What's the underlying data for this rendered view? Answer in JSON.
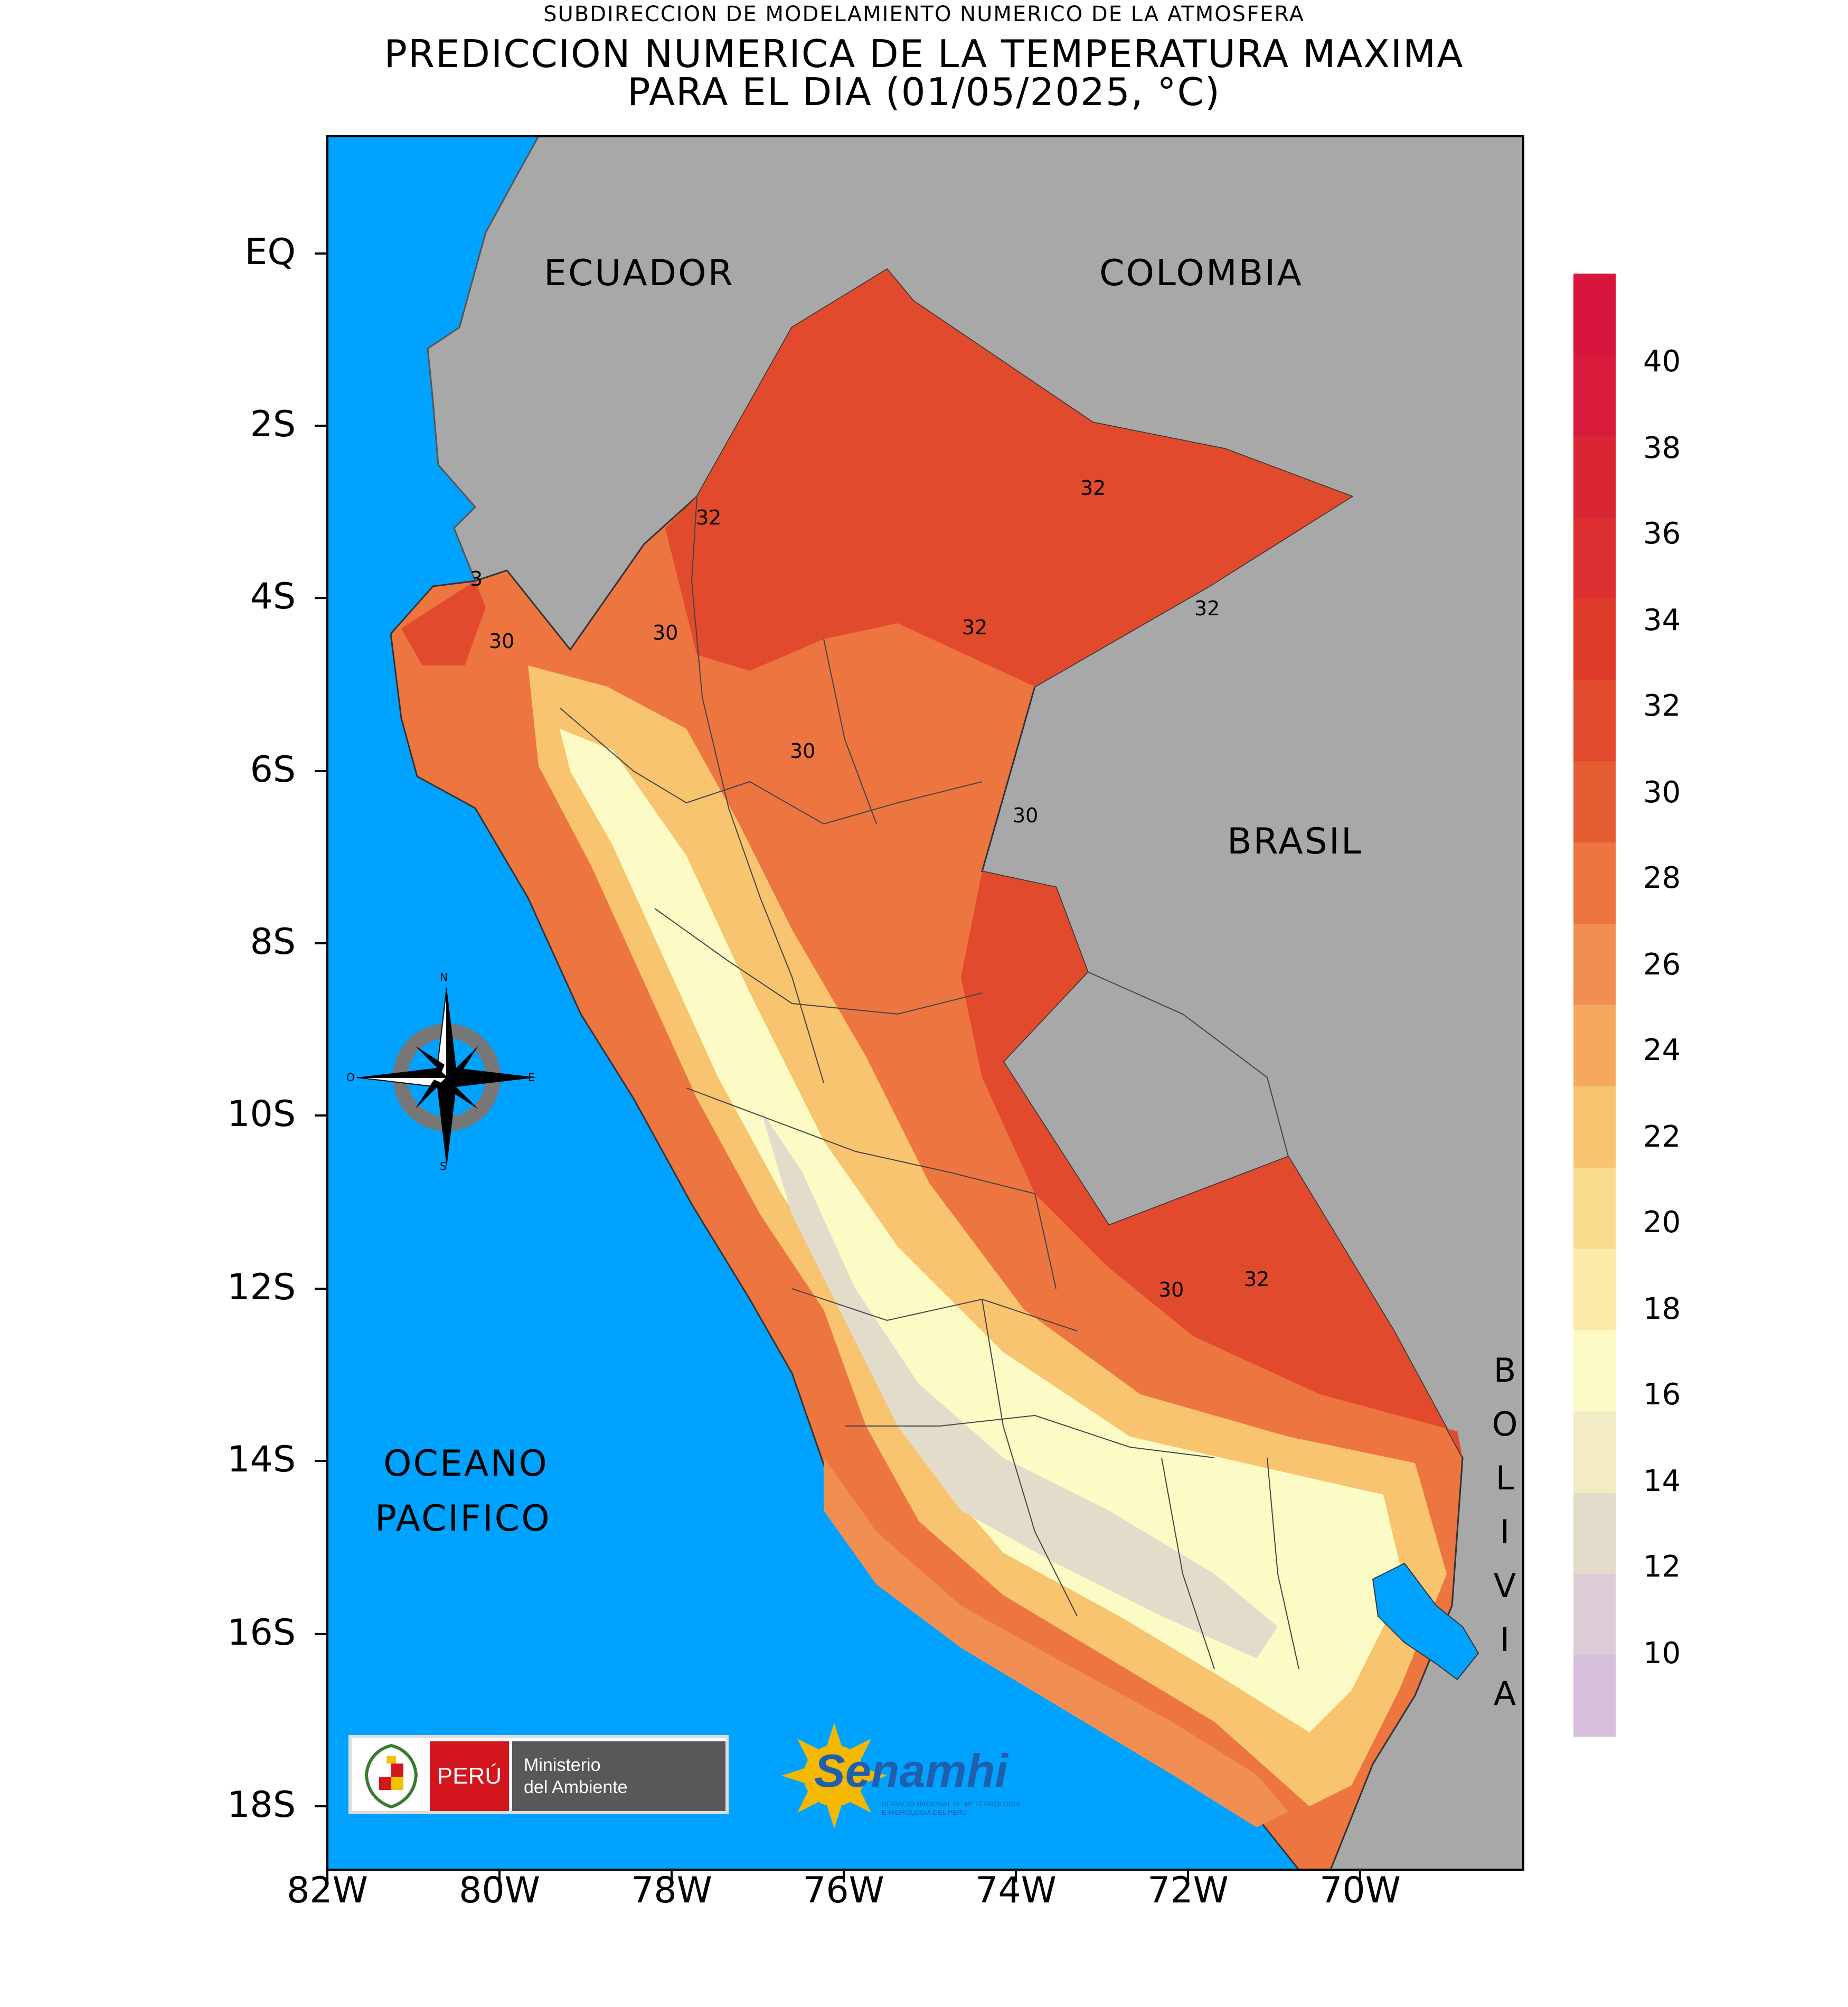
{
  "header": {
    "subtitle": "SUBDIRECCION DE MODELAMIENTO NUMERICO DE LA ATMOSFERA",
    "title_line1": "PREDICCION NUMERICA DE LA TEMPERATURA MAXIMA",
    "title_line2": "PARA EL DIA (01/05/2025, °C)"
  },
  "axes": {
    "lat_ticks": [
      "EQ",
      "2S",
      "4S",
      "6S",
      "8S",
      "10S",
      "12S",
      "14S",
      "16S",
      "18S"
    ],
    "lon_ticks": [
      "82W",
      "80W",
      "78W",
      "76W",
      "74W",
      "72W",
      "70W"
    ]
  },
  "map_labels": {
    "ecuador": "ECUADOR",
    "colombia": "COLOMBIA",
    "brasil": "BRASIL",
    "oceano": "OCEANO",
    "pacifico": "PACIFICO",
    "bolivia": [
      "B",
      "O",
      "L",
      "I",
      "V",
      "I",
      "A"
    ]
  },
  "contour_labels": [
    "32",
    "32",
    "32",
    "32",
    "30",
    "30",
    "30",
    "30",
    "30",
    "32",
    "3"
  ],
  "compass": {
    "n": "N",
    "s": "S",
    "e": "E",
    "o": "O"
  },
  "legend": {
    "labels": [
      "40",
      "38",
      "36",
      "34",
      "32",
      "30",
      "28",
      "26",
      "24",
      "22",
      "20",
      "18",
      "16",
      "14",
      "12",
      "10"
    ],
    "colors": [
      "#d7153d",
      "#d81b3a",
      "#da2535",
      "#dc3030",
      "#de3b2b",
      "#e14a2c",
      "#e65d33",
      "#ec7540",
      "#f18f52",
      "#f5a85e",
      "#f8c46f",
      "#fadb8e",
      "#fbeaa9",
      "#fcfbc6",
      "#f2ecc4",
      "#e4dccb",
      "#dcccd8",
      "#d6c0dc"
    ]
  },
  "colors": {
    "ocean": "#00a2ff",
    "land_other": "#a8a8a8",
    "hot": "#e14a2c",
    "warm": "#ec7540",
    "mild": "#f8c46f",
    "cool": "#fcfbc6",
    "cold": "#e4dccb"
  },
  "logos": {
    "peru": "PERÚ",
    "ministerio_line1": "Ministerio",
    "ministerio_line2": "del Ambiente",
    "senamhi": "Senamhi",
    "senamhi_sub1": "SERVICIO NACIONAL DE METEOROLOGIA",
    "senamhi_sub2": "E HIDROLOGIA DEL PERU"
  }
}
